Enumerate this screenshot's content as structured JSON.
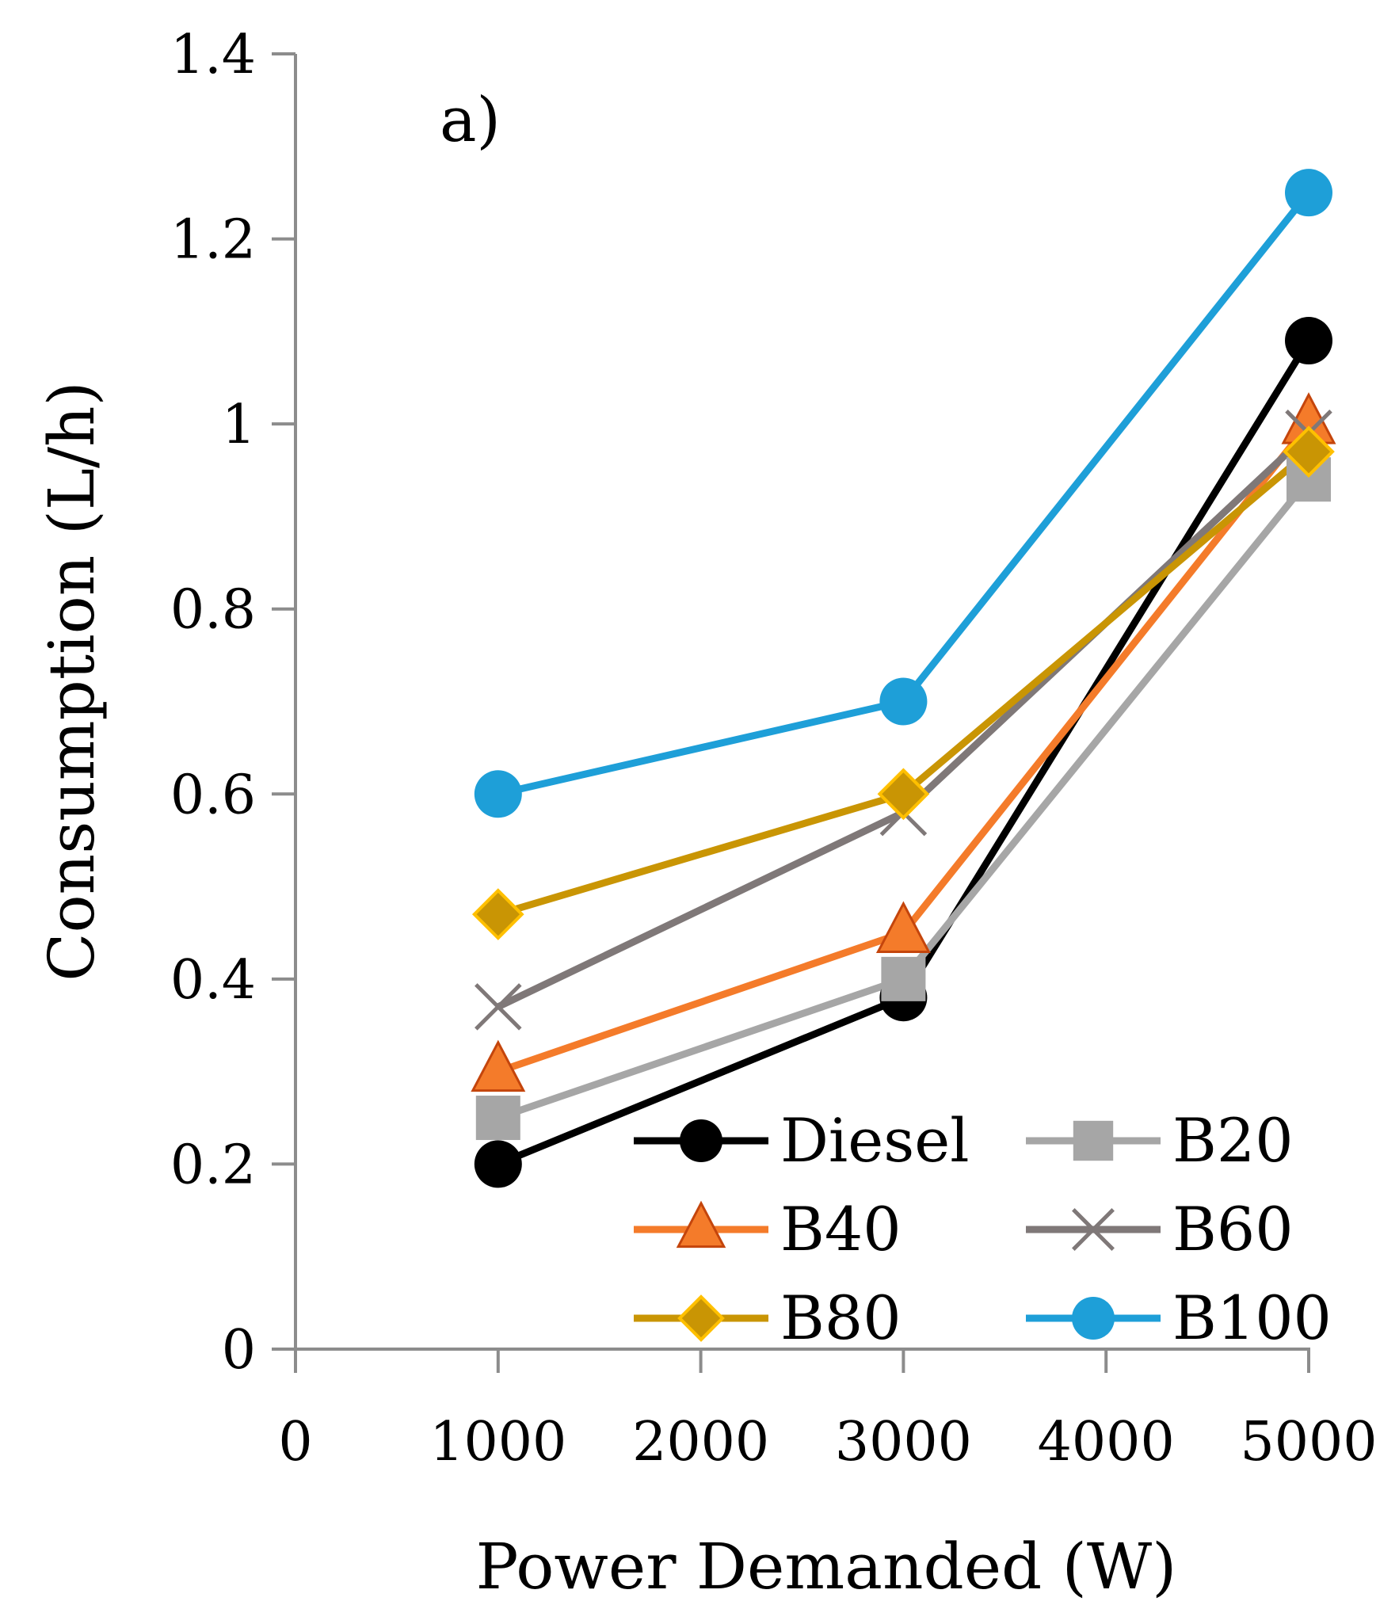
{
  "chart_data": {
    "type": "line",
    "panel_label": "a)",
    "xlabel": "Power Demanded (W)",
    "ylabel": "Consumption (L/h)",
    "xlim": [
      0,
      5000
    ],
    "ylim": [
      0,
      1.4
    ],
    "xticks": [
      "0",
      "1000",
      "2000",
      "3000",
      "4000",
      "5000"
    ],
    "yticks": [
      "0",
      "0.2",
      "0.4",
      "0.6",
      "0.8",
      "1",
      "1.2",
      "1.4"
    ],
    "x": [
      1000,
      3000,
      5000
    ],
    "grid": false,
    "legend_position": "bottom-right",
    "series": [
      {
        "name": "Diesel",
        "values": [
          0.2,
          0.38,
          1.09
        ],
        "color": "#000000",
        "marker": "circle"
      },
      {
        "name": "B20",
        "values": [
          0.25,
          0.4,
          0.94
        ],
        "color": "#a6a6a6",
        "marker": "square"
      },
      {
        "name": "B40",
        "values": [
          0.3,
          0.45,
          1.0
        ],
        "color": "#f47b2a",
        "marker": "triangle"
      },
      {
        "name": "B60",
        "values": [
          0.37,
          0.58,
          0.99
        ],
        "color": "#7f7878",
        "marker": "x"
      },
      {
        "name": "B80",
        "values": [
          0.47,
          0.6,
          0.97
        ],
        "color": "#c99504",
        "marker": "diamond"
      },
      {
        "name": "B100",
        "values": [
          0.6,
          0.7,
          1.25
        ],
        "color": "#1e9fd8",
        "marker": "circle"
      }
    ]
  }
}
